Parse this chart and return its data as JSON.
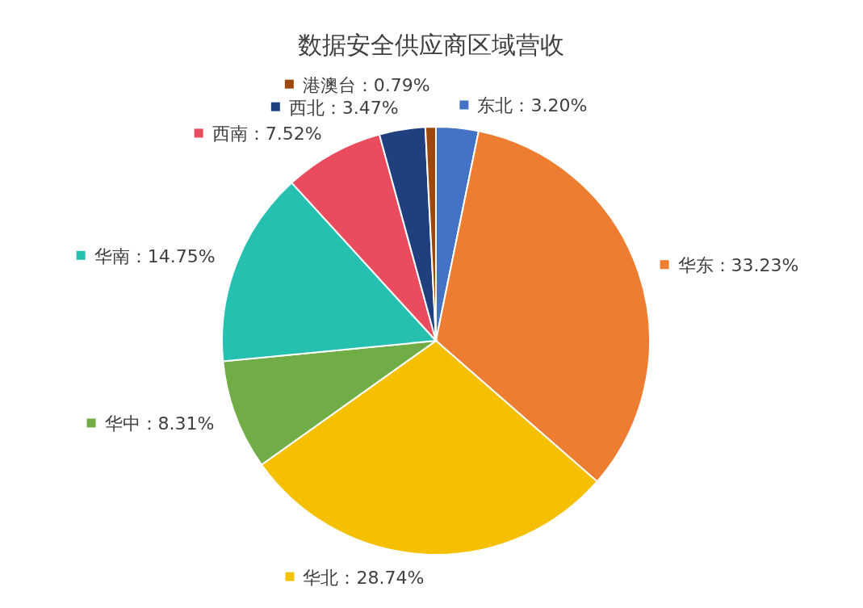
{
  "chart_data": {
    "type": "pie",
    "title": "数据安全供应商区域营收",
    "categories": [
      "东北",
      "华东",
      "华北",
      "华中",
      "华南",
      "西南",
      "西北",
      "港澳台"
    ],
    "values": [
      3.2,
      33.23,
      28.74,
      8.31,
      14.75,
      7.52,
      3.47,
      0.79
    ],
    "colors": [
      "#4472c4",
      "#ed7d31",
      "#f5c000",
      "#70ad47",
      "#26c0b0",
      "#e84c5e",
      "#1f3f7f",
      "#9e480e"
    ],
    "value_labels": [
      "：3.20%",
      "：33.23%",
      "：28.74%",
      "：8.31%",
      "：14.75%",
      "：7.52%",
      "：3.47%",
      "：0.79%"
    ],
    "legend": "top left"
  }
}
